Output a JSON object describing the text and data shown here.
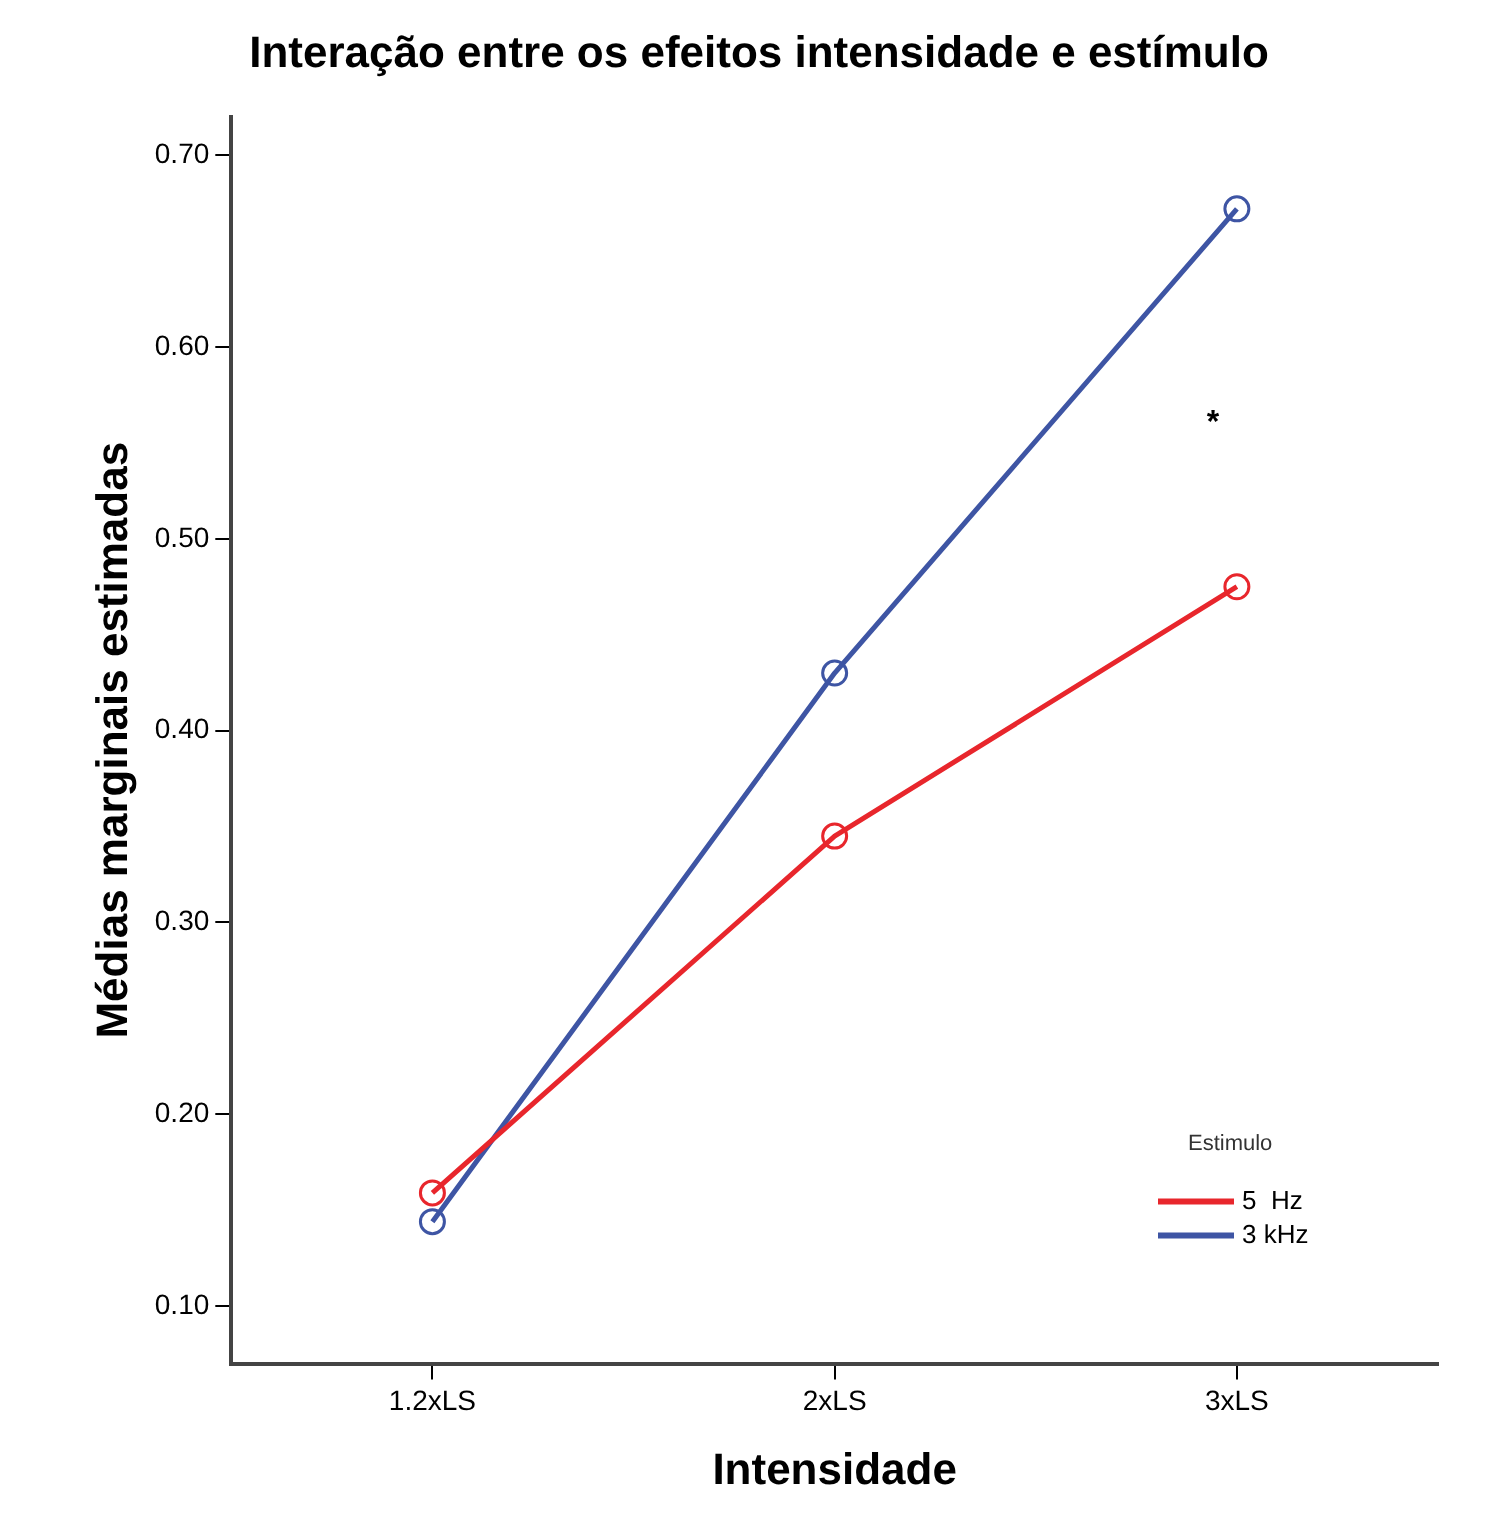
{
  "chart_data": {
    "type": "line",
    "title": "Interação entre os efeitos intensidade e estímulo",
    "xlabel": "Intensidade",
    "ylabel": "Médias marginais estimadas",
    "legend_title": "Estimulo",
    "categories": [
      "1.2xLS",
      "2xLS",
      "3xLS"
    ],
    "series": [
      {
        "name": "5  Hz",
        "color": "#e8262c",
        "values": [
          0.159,
          0.345,
          0.475
        ]
      },
      {
        "name": "3 kHz",
        "color": "#3e55a4",
        "values": [
          0.144,
          0.43,
          0.672
        ]
      }
    ],
    "ylim": [
      0.07,
      0.72
    ],
    "yticks": [
      {
        "value": 0.1,
        "label": "0.10"
      },
      {
        "value": 0.2,
        "label": "0.20"
      },
      {
        "value": 0.3,
        "label": "0.30"
      },
      {
        "value": 0.4,
        "label": "0.40"
      },
      {
        "value": 0.5,
        "label": "0.50"
      },
      {
        "value": 0.6,
        "label": "0.60"
      },
      {
        "value": 0.7,
        "label": "0.70"
      }
    ],
    "annotations": [
      "*"
    ],
    "grid": false,
    "legend": "bottom right",
    "marker": "circle",
    "line_style": "solid"
  }
}
